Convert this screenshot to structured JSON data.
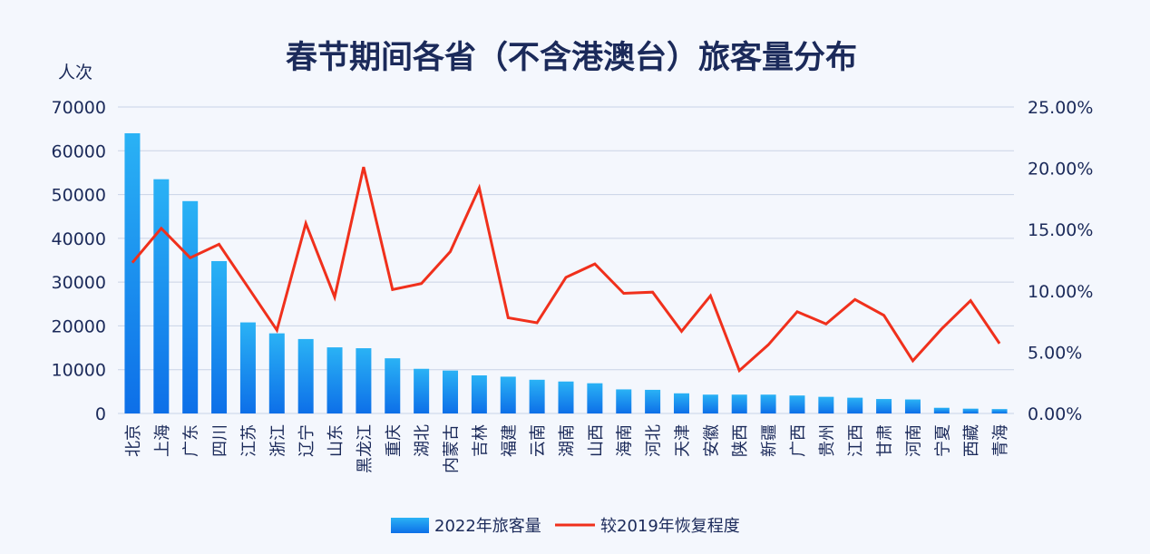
{
  "chart_data": {
    "type": "bar",
    "title": "春节期间各省（不含港澳台）旅客量分布",
    "ylabel_left": "人次",
    "ylim_left": [
      0,
      70000
    ],
    "yticks_left": [
      "70000",
      "60000",
      "50000",
      "40000",
      "30000",
      "20000",
      "10000",
      "0"
    ],
    "ylim_right": [
      0,
      25
    ],
    "yticks_right": [
      "25.00%",
      "20.00%",
      "15.00%",
      "10.00%",
      "5.00%",
      "0.00%"
    ],
    "grid": true,
    "legend_position": "bottom",
    "categories": [
      "北京",
      "上海",
      "广东",
      "四川",
      "江苏",
      "浙江",
      "辽宁",
      "山东",
      "黑龙江",
      "重庆",
      "湖北",
      "内蒙古",
      "吉林",
      "福建",
      "云南",
      "湖南",
      "山西",
      "海南",
      "河北",
      "天津",
      "安徽",
      "陕西",
      "新疆",
      "广西",
      "贵州",
      "江西",
      "甘肃",
      "河南",
      "宁夏",
      "西藏",
      "青海"
    ],
    "series": [
      {
        "name": "2022年旅客量",
        "type": "bar",
        "axis": "left",
        "color": "#1a8cf0",
        "values": [
          64000,
          53500,
          48500,
          34800,
          20800,
          18300,
          17000,
          15100,
          14900,
          12600,
          10200,
          9800,
          8700,
          8400,
          7700,
          7300,
          6900,
          5500,
          5400,
          4600,
          4300,
          4300,
          4300,
          4100,
          3800,
          3600,
          3300,
          3200,
          1300,
          1100,
          1000
        ]
      },
      {
        "name": "较2019年恢复程度",
        "type": "line",
        "axis": "right",
        "color": "#f0301c",
        "values": [
          12.3,
          15.1,
          12.7,
          13.8,
          10.3,
          6.8,
          15.5,
          9.5,
          20.1,
          10.1,
          10.6,
          13.2,
          18.4,
          7.8,
          7.4,
          11.1,
          12.2,
          9.8,
          9.9,
          6.7,
          9.6,
          3.5,
          5.6,
          8.3,
          7.3,
          9.3,
          8.0,
          4.3,
          6.9,
          9.2,
          5.7
        ]
      }
    ]
  }
}
